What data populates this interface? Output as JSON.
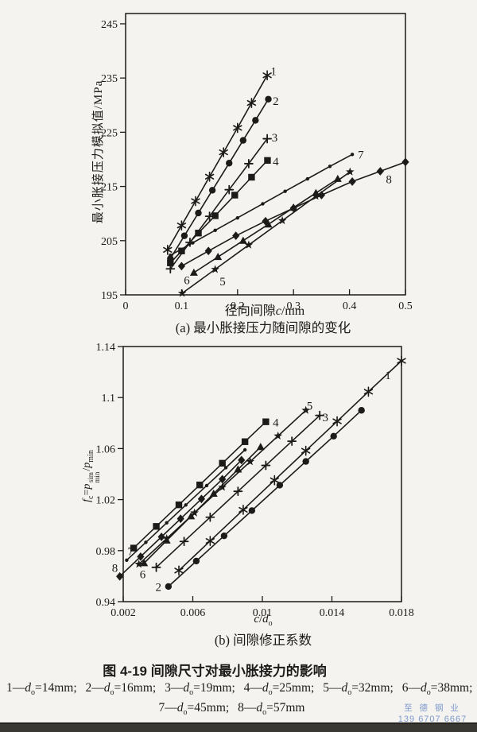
{
  "figure": {
    "title": "图 4-19  间隙尺寸对最小胀接力的影响",
    "ink_color": "#1d1b19",
    "paper_color": "#f5f3ef"
  },
  "legend": {
    "items": [
      {
        "num": "1",
        "sym": "d",
        "sub": "o",
        "value": "14mm"
      },
      {
        "num": "2",
        "sym": "d",
        "sub": "o",
        "value": "16mm"
      },
      {
        "num": "3",
        "sym": "d",
        "sub": "o",
        "value": "19mm"
      },
      {
        "num": "4",
        "sym": "d",
        "sub": "o",
        "value": "25mm"
      },
      {
        "num": "5",
        "sym": "d",
        "sub": "o",
        "value": "32mm"
      },
      {
        "num": "6",
        "sym": "d",
        "sub": "o",
        "value": "38mm"
      },
      {
        "num": "7",
        "sym": "d",
        "sub": "o",
        "value": "45mm"
      },
      {
        "num": "8",
        "sym": "d",
        "sub": "o",
        "value": "57mm"
      }
    ],
    "separator": "; "
  },
  "watermark": {
    "line1": "至 德 钢 业",
    "line2": "139 6707 6667",
    "color": "#7d99cc"
  },
  "chart_data": [
    {
      "id": "a",
      "type": "line",
      "title": "(a) 最小胀接压力随间隙的变化",
      "ylabel": "最小胀接压力模拟值/MPa",
      "xlabel": {
        "pre": "径向间隙",
        "var": "c",
        "post": "/mm"
      },
      "xlim": [
        0,
        0.5
      ],
      "ylim": [
        195,
        246.9
      ],
      "xticks": [
        "0",
        "0.1",
        "0.2",
        "0.3",
        "0.4",
        "0.5"
      ],
      "yticks": [
        "195",
        "205",
        "215",
        "225",
        "235",
        "245"
      ],
      "grid": false,
      "series": [
        {
          "name": "1",
          "d_o": "14mm",
          "marker": "asterisk",
          "points": [
            [
              0.075,
              203.3
            ],
            [
              0.1,
              207.8
            ],
            [
              0.125,
              212.3
            ],
            [
              0.15,
              216.8
            ],
            [
              0.175,
              221.3
            ],
            [
              0.2,
              225.8
            ],
            [
              0.225,
              230.4
            ],
            [
              0.253,
              235.5
            ]
          ],
          "label_at": [
            0.259,
            236.3
          ]
        },
        {
          "name": "2",
          "d_o": "16mm",
          "marker": "circle",
          "points": [
            [
              0.08,
              201.7
            ],
            [
              0.105,
              205.9
            ],
            [
              0.13,
              210.1
            ],
            [
              0.155,
              214.3
            ],
            [
              0.185,
              219.3
            ],
            [
              0.21,
              223.5
            ],
            [
              0.232,
              227.2
            ],
            [
              0.255,
              231.1
            ]
          ],
          "label_at": [
            0.263,
            230.8
          ]
        },
        {
          "name": "3",
          "d_o": "19mm",
          "marker": "plus",
          "points": [
            [
              0.08,
              199.8
            ],
            [
              0.115,
              204.7
            ],
            [
              0.15,
              209.5
            ],
            [
              0.185,
              214.4
            ],
            [
              0.22,
              219.2
            ],
            [
              0.253,
              223.8
            ]
          ],
          "label_at": [
            0.261,
            224.0
          ]
        },
        {
          "name": "4",
          "d_o": "25mm",
          "marker": "square",
          "points": [
            [
              0.08,
              200.9
            ],
            [
              0.1,
              203.1
            ],
            [
              0.13,
              206.4
            ],
            [
              0.16,
              209.6
            ],
            [
              0.195,
              213.4
            ],
            [
              0.225,
              216.7
            ],
            [
              0.2535,
              219.8
            ]
          ],
          "label_at": [
            0.263,
            219.6
          ]
        },
        {
          "name": "5",
          "d_o": "32mm",
          "marker": "star5",
          "points": [
            [
              0.101,
              195.3
            ],
            [
              0.16,
              199.7
            ],
            [
              0.22,
              204.2
            ],
            [
              0.28,
              208.7
            ],
            [
              0.34,
              213.2
            ],
            [
              0.401,
              217.7
            ]
          ],
          "label_at": [
            0.168,
            197.5
          ]
        },
        {
          "name": "6",
          "d_o": "38mm",
          "marker": "triangle",
          "points": [
            [
              0.122,
              199.1
            ],
            [
              0.165,
              202.0
            ],
            [
              0.21,
              205.0
            ],
            [
              0.255,
              208.0
            ],
            [
              0.3,
              211.1
            ],
            [
              0.34,
              213.8
            ],
            [
              0.379,
              216.4
            ]
          ],
          "label_at": [
            0.104,
            197.7
          ]
        },
        {
          "name": "7",
          "d_o": "45mm",
          "marker": "dot",
          "points": [
            [
              0.08,
              202.3
            ],
            [
              0.12,
              204.6
            ],
            [
              0.16,
              206.9
            ],
            [
              0.2,
              209.2
            ],
            [
              0.245,
              211.8
            ],
            [
              0.285,
              214.1
            ],
            [
              0.325,
              216.4
            ],
            [
              0.365,
              218.7
            ],
            [
              0.405,
              220.9
            ]
          ],
          "label_at": [
            0.415,
            220.9
          ]
        },
        {
          "name": "8",
          "d_o": "57mm",
          "marker": "diamond",
          "points": [
            [
              0.1,
              200.3
            ],
            [
              0.148,
              203.1
            ],
            [
              0.197,
              205.9
            ],
            [
              0.25,
              208.6
            ],
            [
              0.3,
              211.0
            ],
            [
              0.35,
              213.4
            ],
            [
              0.405,
              215.9
            ],
            [
              0.455,
              217.8
            ],
            [
              0.5,
              219.5
            ]
          ],
          "label_at": [
            0.465,
            216.3
          ]
        }
      ]
    },
    {
      "id": "b",
      "type": "line",
      "title": "(b) 间隙修正系数",
      "ylabel_parts": {
        "f": "f",
        "f_sub": "c",
        "eq": "=",
        "p": "p",
        "p_sup": "sim",
        "p_sub": "min",
        "slash": "/",
        "p2": "p",
        "p2_sub": "min"
      },
      "xlabel": {
        "num": "c",
        "slash": "/",
        "den": "d",
        "den_sub": "o"
      },
      "xlim": [
        0.002,
        0.018
      ],
      "ylim": [
        0.94,
        1.14
      ],
      "xticks": [
        "0.002",
        "0.006",
        "0.01",
        "0.014",
        "0.018"
      ],
      "yticks": [
        "0.94",
        "0.98",
        "1.02",
        "1.06",
        "1.1",
        "1.14"
      ],
      "grid": false,
      "series": [
        {
          "name": "1",
          "d_o": "14mm",
          "marker": "asterisk",
          "points": [
            [
              0.0052,
              0.9644
            ],
            [
              0.007,
              0.9876
            ],
            [
              0.0089,
              1.012
            ],
            [
              0.0107,
              1.0352
            ],
            [
              0.0125,
              1.0583
            ],
            [
              0.0143,
              1.0814
            ],
            [
              0.0161,
              1.1046
            ],
            [
              0.018,
              1.1288
            ]
          ],
          "label_at": [
            0.01705,
            1.1175
          ]
        },
        {
          "name": "2",
          "d_o": "16mm",
          "marker": "circle",
          "points": [
            [
              0.0046,
              0.9519
            ],
            [
              0.0062,
              0.9718
            ],
            [
              0.0078,
              0.9916
            ],
            [
              0.0094,
              1.0114
            ],
            [
              0.011,
              1.0313
            ],
            [
              0.0125,
              1.0499
            ],
            [
              0.0141,
              1.0697
            ],
            [
              0.0157,
              1.09
            ]
          ],
          "label_at": [
            0.00385,
            0.9515
          ]
        },
        {
          "name": "3",
          "d_o": "19mm",
          "marker": "plus",
          "points": [
            [
              0.0039,
              0.9669
            ],
            [
              0.0055,
              0.9872
            ],
            [
              0.007,
              1.0062
            ],
            [
              0.0086,
              1.0265
            ],
            [
              0.0102,
              1.0468
            ],
            [
              0.0117,
              1.0658
            ],
            [
              0.0133,
              1.086
            ]
          ],
          "label_at": [
            0.01345,
            1.0845
          ]
        },
        {
          "name": "4",
          "d_o": "25mm",
          "marker": "square",
          "points": [
            [
              0.0026,
              0.982
            ],
            [
              0.0039,
              0.999
            ],
            [
              0.0052,
              1.0159
            ],
            [
              0.0064,
              1.0315
            ],
            [
              0.0077,
              1.0485
            ],
            [
              0.009,
              1.0654
            ],
            [
              0.0102,
              1.081
            ]
          ],
          "label_at": [
            0.0106,
            1.0805
          ]
        },
        {
          "name": "5",
          "d_o": "32mm",
          "marker": "star5",
          "points": [
            [
              0.0029,
              0.9694
            ],
            [
              0.0045,
              0.9895
            ],
            [
              0.0061,
              1.0096
            ],
            [
              0.0077,
              1.0297
            ],
            [
              0.0093,
              1.0498
            ],
            [
              0.0109,
              1.0699
            ],
            [
              0.0125,
              1.09
            ]
          ],
          "label_at": [
            0.01255,
            1.0935
          ]
        },
        {
          "name": "6",
          "d_o": "38mm",
          "marker": "triangle",
          "points": [
            [
              0.0032,
              0.9702
            ],
            [
              0.0045,
              0.988
            ],
            [
              0.0059,
              1.007
            ],
            [
              0.0072,
              1.0247
            ],
            [
              0.0086,
              1.0437
            ],
            [
              0.0099,
              1.0613
            ]
          ],
          "label_at": [
            0.00295,
            0.9615
          ]
        },
        {
          "name": "7",
          "d_o": "45mm",
          "marker": "dot",
          "points": [
            [
              0.0022,
              0.9725
            ],
            [
              0.0033,
              0.9865
            ],
            [
              0.0045,
              1.0018
            ],
            [
              0.0056,
              1.0158
            ],
            [
              0.0068,
              1.031
            ],
            [
              0.0079,
              1.045
            ],
            [
              0.009,
              1.059
            ]
          ],
          "label_at": [
            0.00225,
            0.9795
          ]
        },
        {
          "name": "8",
          "d_o": "57mm",
          "marker": "diamond",
          "points": [
            [
              0.0018,
              0.9598
            ],
            [
              0.003,
              0.9753
            ],
            [
              0.0042,
              0.9908
            ],
            [
              0.0053,
              1.005
            ],
            [
              0.0065,
              1.0205
            ],
            [
              0.0077,
              1.036
            ],
            [
              0.0088,
              1.051
            ]
          ],
          "label_at": [
            0.00135,
            0.9665
          ]
        }
      ]
    }
  ]
}
